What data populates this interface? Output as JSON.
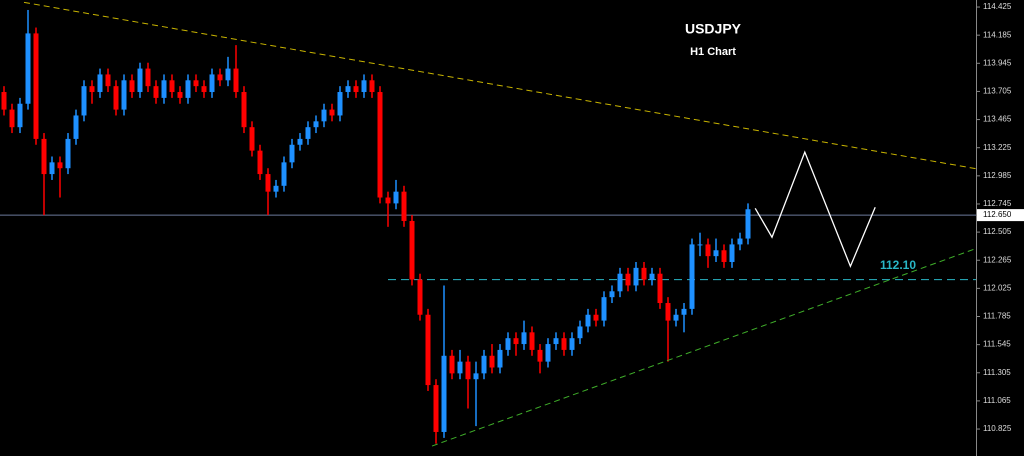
{
  "chart_data": {
    "type": "candlestick",
    "title": "USDJPY",
    "subtitle": "H1 Chart",
    "xlim": [
      0,
      122
    ],
    "ylim": [
      110.595,
      114.485
    ],
    "yticks": [
      114.425,
      114.185,
      113.945,
      113.705,
      113.465,
      113.225,
      112.985,
      112.745,
      112.505,
      112.265,
      112.025,
      111.785,
      111.545,
      111.305,
      111.065,
      110.825
    ],
    "up_color": "#1e90ff",
    "down_color": "#ff0000",
    "ohlc": [
      [
        113.7,
        113.75,
        113.5,
        113.55
      ],
      [
        113.55,
        113.6,
        113.35,
        113.4
      ],
      [
        113.4,
        113.65,
        113.35,
        113.6
      ],
      [
        113.6,
        114.4,
        113.55,
        114.2
      ],
      [
        114.2,
        114.25,
        113.25,
        113.3
      ],
      [
        113.3,
        113.35,
        112.65,
        113.0
      ],
      [
        113.0,
        113.15,
        112.95,
        113.1
      ],
      [
        113.1,
        113.15,
        112.8,
        113.05
      ],
      [
        113.05,
        113.35,
        113.0,
        113.3
      ],
      [
        113.3,
        113.55,
        113.25,
        113.5
      ],
      [
        113.5,
        113.8,
        113.45,
        113.75
      ],
      [
        113.75,
        113.8,
        113.6,
        113.7
      ],
      [
        113.7,
        113.9,
        113.65,
        113.85
      ],
      [
        113.85,
        113.9,
        113.7,
        113.75
      ],
      [
        113.75,
        113.8,
        113.5,
        113.55
      ],
      [
        113.55,
        113.85,
        113.5,
        113.8
      ],
      [
        113.8,
        113.85,
        113.65,
        113.7
      ],
      [
        113.7,
        113.95,
        113.65,
        113.9
      ],
      [
        113.9,
        113.95,
        113.7,
        113.75
      ],
      [
        113.75,
        113.8,
        113.6,
        113.65
      ],
      [
        113.65,
        113.85,
        113.6,
        113.8
      ],
      [
        113.8,
        113.85,
        113.65,
        113.7
      ],
      [
        113.7,
        113.75,
        113.6,
        113.65
      ],
      [
        113.65,
        113.85,
        113.6,
        113.8
      ],
      [
        113.8,
        113.85,
        113.7,
        113.75
      ],
      [
        113.75,
        113.8,
        113.65,
        113.7
      ],
      [
        113.7,
        113.9,
        113.65,
        113.85
      ],
      [
        113.85,
        113.9,
        113.75,
        113.8
      ],
      [
        113.8,
        114.0,
        113.75,
        113.9
      ],
      [
        113.9,
        114.1,
        113.65,
        113.7
      ],
      [
        113.7,
        113.75,
        113.35,
        113.4
      ],
      [
        113.4,
        113.45,
        113.15,
        113.2
      ],
      [
        113.2,
        113.25,
        112.95,
        113.0
      ],
      [
        113.0,
        113.05,
        112.65,
        112.85
      ],
      [
        112.85,
        112.95,
        112.8,
        112.9
      ],
      [
        112.9,
        113.15,
        112.85,
        113.1
      ],
      [
        113.1,
        113.3,
        113.05,
        113.25
      ],
      [
        113.25,
        113.35,
        113.2,
        113.3
      ],
      [
        113.3,
        113.45,
        113.25,
        113.4
      ],
      [
        113.4,
        113.5,
        113.35,
        113.45
      ],
      [
        113.45,
        113.6,
        113.4,
        113.55
      ],
      [
        113.55,
        113.6,
        113.45,
        113.5
      ],
      [
        113.5,
        113.75,
        113.45,
        113.7
      ],
      [
        113.7,
        113.8,
        113.65,
        113.75
      ],
      [
        113.75,
        113.8,
        113.65,
        113.7
      ],
      [
        113.7,
        113.85,
        113.65,
        113.8
      ],
      [
        113.8,
        113.85,
        113.65,
        113.7
      ],
      [
        113.7,
        113.75,
        112.75,
        112.8
      ],
      [
        112.8,
        112.85,
        112.55,
        112.75
      ],
      [
        112.75,
        112.95,
        112.7,
        112.85
      ],
      [
        112.85,
        112.9,
        112.55,
        112.6
      ],
      [
        112.6,
        112.65,
        112.05,
        112.1
      ],
      [
        112.1,
        112.15,
        111.75,
        111.8
      ],
      [
        111.8,
        111.85,
        111.15,
        111.2
      ],
      [
        111.2,
        111.25,
        110.7,
        110.8
      ],
      [
        110.8,
        112.05,
        110.75,
        111.45
      ],
      [
        111.45,
        111.5,
        111.25,
        111.3
      ],
      [
        111.3,
        111.5,
        111.25,
        111.4
      ],
      [
        111.4,
        111.45,
        111.0,
        111.25
      ],
      [
        111.25,
        111.4,
        110.85,
        111.3
      ],
      [
        111.3,
        111.5,
        111.25,
        111.45
      ],
      [
        111.45,
        111.55,
        111.3,
        111.35
      ],
      [
        111.35,
        111.55,
        111.3,
        111.5
      ],
      [
        111.5,
        111.65,
        111.45,
        111.6
      ],
      [
        111.6,
        111.65,
        111.45,
        111.55
      ],
      [
        111.55,
        111.75,
        111.5,
        111.65
      ],
      [
        111.65,
        111.7,
        111.45,
        111.5
      ],
      [
        111.5,
        111.55,
        111.3,
        111.4
      ],
      [
        111.4,
        111.6,
        111.35,
        111.55
      ],
      [
        111.55,
        111.65,
        111.5,
        111.6
      ],
      [
        111.6,
        111.65,
        111.45,
        111.5
      ],
      [
        111.5,
        111.65,
        111.45,
        111.6
      ],
      [
        111.6,
        111.75,
        111.55,
        111.7
      ],
      [
        111.7,
        111.85,
        111.65,
        111.8
      ],
      [
        111.8,
        111.85,
        111.7,
        111.75
      ],
      [
        111.75,
        112.0,
        111.7,
        111.95
      ],
      [
        111.95,
        112.05,
        111.9,
        112.0
      ],
      [
        112.0,
        112.2,
        111.95,
        112.15
      ],
      [
        112.15,
        112.2,
        112.0,
        112.05
      ],
      [
        112.05,
        112.25,
        112.0,
        112.2
      ],
      [
        112.2,
        112.25,
        112.05,
        112.1
      ],
      [
        112.1,
        112.2,
        112.05,
        112.15
      ],
      [
        112.15,
        112.2,
        111.85,
        111.9
      ],
      [
        111.9,
        111.95,
        111.4,
        111.75
      ],
      [
        111.75,
        111.85,
        111.7,
        111.8
      ],
      [
        111.8,
        111.9,
        111.65,
        111.85
      ],
      [
        111.85,
        112.45,
        111.8,
        112.4
      ],
      [
        112.4,
        112.5,
        112.3,
        112.4
      ],
      [
        112.4,
        112.45,
        112.2,
        112.3
      ],
      [
        112.3,
        112.45,
        112.25,
        112.35
      ],
      [
        112.35,
        112.4,
        112.2,
        112.25
      ],
      [
        112.25,
        112.45,
        112.2,
        112.4
      ],
      [
        112.4,
        112.5,
        112.35,
        112.45
      ],
      [
        112.45,
        112.75,
        112.4,
        112.7
      ]
    ],
    "current_price": {
      "value": 112.65,
      "label": "112.650",
      "color": "#6c7a9c"
    },
    "level": {
      "value": 112.1,
      "label": "112.10",
      "x_start": 48.5,
      "color": "#29b6c6"
    },
    "trendlines": [
      {
        "x": [
          3,
          122
        ],
        "y": [
          114.465,
          113.046
        ],
        "color": "#c8b400"
      },
      {
        "x": [
          54,
          122
        ],
        "y": [
          110.68,
          112.365
        ],
        "color": "#3fae2a"
      }
    ],
    "projection": {
      "x": [
        94.4,
        96.5,
        100.6,
        106.3,
        109.4
      ],
      "y": [
        112.708,
        112.461,
        113.187,
        112.213,
        112.717
      ],
      "color": "#ffffff"
    }
  }
}
